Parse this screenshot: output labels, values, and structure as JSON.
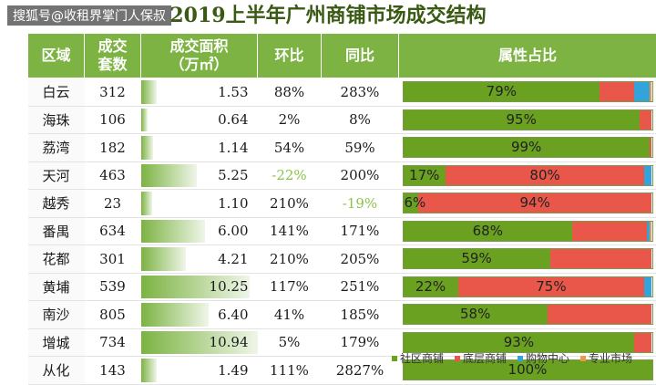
{
  "watermark": "搜狐号@收租界掌门人保叔",
  "title": "2019上半年广州商铺市场成交结构",
  "headers": {
    "region": "区域",
    "units_1": "成交",
    "units_2": "套数",
    "area_1": "成交面积",
    "area_2": "（万㎡）",
    "mom": "环比",
    "yoy": "同比",
    "mix": "属性占比"
  },
  "colors": {
    "header_bg": "#7cb342",
    "area_bar": "#7cb342",
    "community": "#6aa121",
    "ground": "#e8574a",
    "mall": "#33a3dc",
    "market": "#f0954a",
    "negative_text": "#8bc34a"
  },
  "legend": [
    "社区商铺",
    "底层商铺",
    "购物中心",
    "专业市场"
  ],
  "chart_data": {
    "type": "table",
    "title": "2019上半年广州商铺市场成交结构",
    "columns": [
      "区域",
      "成交套数",
      "成交面积（万㎡）",
      "环比",
      "同比",
      "属性占比"
    ],
    "area_max": 10.94,
    "rows": [
      {
        "region": "白云",
        "units": "312",
        "area": "1.53",
        "area_value": 1.53,
        "mom": "88%",
        "yoy": "283%",
        "mix": [
          79,
          14,
          6,
          1
        ],
        "mix_labels": [
          "79%",
          "",
          "",
          ""
        ]
      },
      {
        "region": "海珠",
        "units": "106",
        "area": "0.64",
        "area_value": 0.64,
        "mom": "2%",
        "yoy": "8%",
        "mix": [
          95,
          5,
          0,
          0
        ],
        "mix_labels": [
          "95%",
          "",
          "",
          ""
        ]
      },
      {
        "region": "荔湾",
        "units": "182",
        "area": "1.14",
        "area_value": 1.14,
        "mom": "54%",
        "yoy": "59%",
        "mix": [
          99,
          1,
          0,
          0
        ],
        "mix_labels": [
          "99%",
          "",
          "",
          ""
        ]
      },
      {
        "region": "天河",
        "units": "463",
        "area": "5.25",
        "area_value": 5.25,
        "mom": "-22%",
        "yoy": "200%",
        "mix": [
          17,
          80,
          3,
          0
        ],
        "mix_labels": [
          "17%",
          "80%",
          "",
          ""
        ]
      },
      {
        "region": "越秀",
        "units": "23",
        "area": "1.10",
        "area_value": 1.1,
        "mom": "210%",
        "yoy": "-19%",
        "mix": [
          6,
          94,
          0,
          0
        ],
        "mix_labels": [
          "6%",
          "94%",
          "",
          ""
        ]
      },
      {
        "region": "番禺",
        "units": "634",
        "area": "6.00",
        "area_value": 6.0,
        "mom": "141%",
        "yoy": "171%",
        "mix": [
          68,
          30,
          1,
          1
        ],
        "mix_labels": [
          "68%",
          "",
          "",
          ""
        ]
      },
      {
        "region": "花都",
        "units": "301",
        "area": "4.21",
        "area_value": 4.21,
        "mom": "210%",
        "yoy": "205%",
        "mix": [
          59,
          41,
          0,
          0
        ],
        "mix_labels": [
          "59%",
          "",
          "",
          ""
        ]
      },
      {
        "region": "黄埔",
        "units": "539",
        "area": "10.25",
        "area_value": 10.25,
        "mom": "117%",
        "yoy": "251%",
        "mix": [
          22,
          75,
          3,
          0
        ],
        "mix_labels": [
          "22%",
          "75%",
          "",
          ""
        ]
      },
      {
        "region": "南沙",
        "units": "805",
        "area": "6.40",
        "area_value": 6.4,
        "mom": "41%",
        "yoy": "185%",
        "mix": [
          58,
          42,
          0,
          0
        ],
        "mix_labels": [
          "58%",
          "",
          "",
          ""
        ]
      },
      {
        "region": "增城",
        "units": "734",
        "area": "10.94",
        "area_value": 10.94,
        "mom": "5%",
        "yoy": "179%",
        "mix": [
          93,
          7,
          0,
          0
        ],
        "mix_labels": [
          "93%",
          "",
          "",
          ""
        ]
      },
      {
        "region": "从化",
        "units": "143",
        "area": "1.49",
        "area_value": 1.49,
        "mom": "111%",
        "yoy": "2827%",
        "mix": [
          100,
          0,
          0,
          0
        ],
        "mix_labels": [
          "100%",
          "",
          "",
          ""
        ]
      }
    ]
  }
}
